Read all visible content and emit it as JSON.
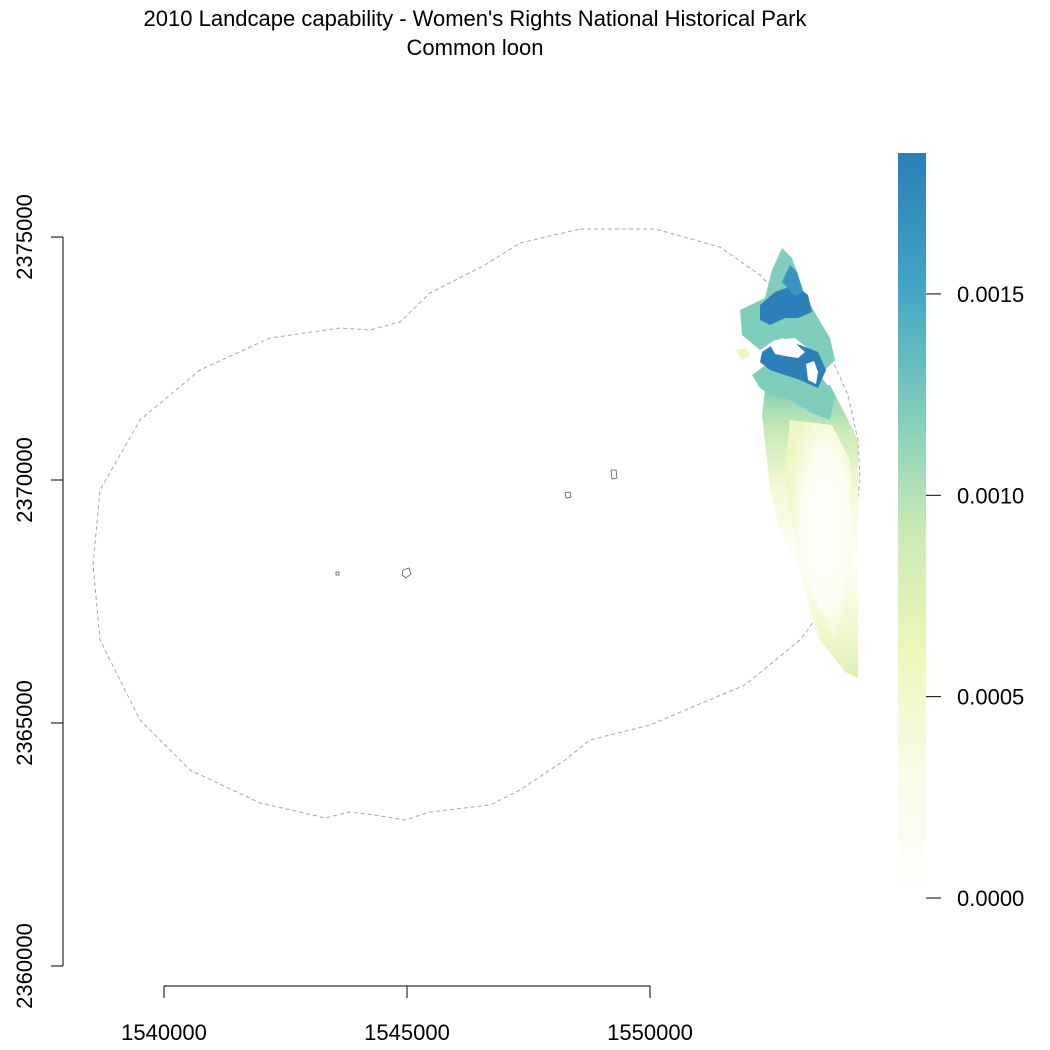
{
  "title": {
    "line1": "2010 Landcape capability - Women's Rights National Historical Park",
    "line2": "Common loon"
  },
  "chart_data": {
    "type": "heatmap",
    "x_axis": {
      "ticks": [
        1540000,
        1545000,
        1550000
      ],
      "tick_labels": [
        "1540000",
        "1545000",
        "1550000"
      ]
    },
    "y_axis": {
      "ticks": [
        2360000,
        2365000,
        2370000,
        2375000
      ],
      "tick_labels": [
        "2360000",
        "2365000",
        "2370000",
        "2375000"
      ]
    },
    "legend": {
      "ticks": [
        0.0,
        0.0005,
        0.001,
        0.0015
      ],
      "tick_labels": [
        "0.0000",
        "0.0005",
        "0.0010",
        "0.0015"
      ],
      "range": [
        0.0,
        0.00185
      ],
      "colors": [
        "#ffffff",
        "#f4f9d0",
        "#e9f5b0",
        "#c2e6b4",
        "#7fcdbb",
        "#41a5c4",
        "#2c7fb8"
      ]
    }
  }
}
